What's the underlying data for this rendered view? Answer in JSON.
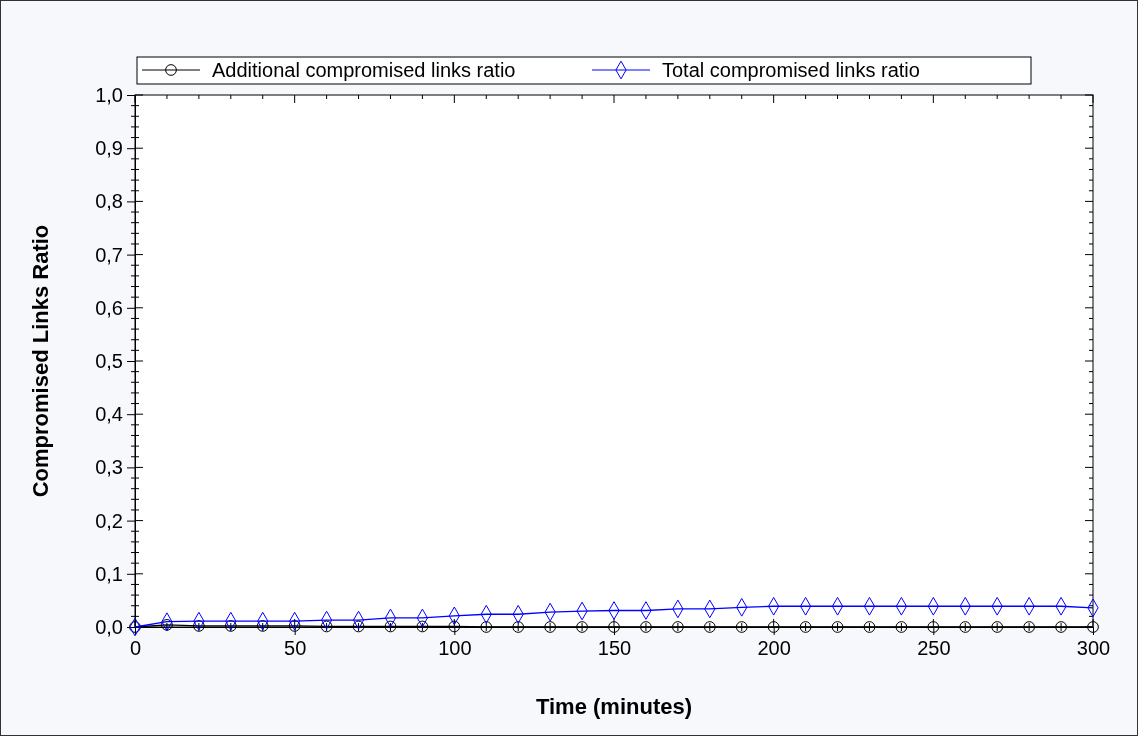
{
  "chart_data": {
    "type": "line",
    "xlabel": "Time (minutes)",
    "ylabel": "Compromised Links Ratio",
    "x": [
      0,
      10,
      20,
      30,
      40,
      50,
      60,
      70,
      80,
      90,
      100,
      110,
      120,
      130,
      140,
      150,
      160,
      170,
      180,
      190,
      200,
      210,
      220,
      230,
      240,
      250,
      260,
      270,
      280,
      290,
      300
    ],
    "series": [
      {
        "name": "Additional compromised links ratio",
        "color": "#000000",
        "marker": "circle",
        "values": [
          0,
          0.004,
          0.002,
          0.002,
          0.002,
          0.002,
          0.001,
          0.001,
          0.001,
          0.001,
          0.001,
          0,
          0,
          0,
          0,
          0,
          0,
          0,
          0,
          0,
          0,
          0,
          0,
          0,
          0,
          0,
          0,
          0,
          0,
          0,
          0
        ]
      },
      {
        "name": "Total compromised links ratio",
        "color": "#0000ff",
        "marker": "diamond",
        "values": [
          0,
          0.01,
          0.011,
          0.011,
          0.011,
          0.011,
          0.013,
          0.013,
          0.017,
          0.017,
          0.021,
          0.024,
          0.024,
          0.028,
          0.03,
          0.031,
          0.031,
          0.034,
          0.034,
          0.037,
          0.039,
          0.039,
          0.039,
          0.039,
          0.039,
          0.039,
          0.039,
          0.039,
          0.039,
          0.039,
          0.036
        ]
      }
    ],
    "xlim": [
      0,
      300
    ],
    "xticks": [
      0,
      50,
      100,
      150,
      200,
      250,
      300
    ],
    "ylim": [
      0,
      1
    ],
    "yticks": [
      {
        "value": 0,
        "label": "0,0"
      },
      {
        "value": 0.1,
        "label": "0,1"
      },
      {
        "value": 0.2,
        "label": "0,2"
      },
      {
        "value": 0.3,
        "label": "0,3"
      },
      {
        "value": 0.4,
        "label": "0,4"
      },
      {
        "value": 0.5,
        "label": "0,5"
      },
      {
        "value": 0.6,
        "label": "0,6"
      },
      {
        "value": 0.7,
        "label": "0,7"
      },
      {
        "value": 0.8,
        "label": "0,8"
      },
      {
        "value": 0.9,
        "label": "0,9"
      },
      {
        "value": 1,
        "label": "1,0"
      }
    ],
    "legend": "top",
    "grid": false,
    "line_style": "solid"
  }
}
